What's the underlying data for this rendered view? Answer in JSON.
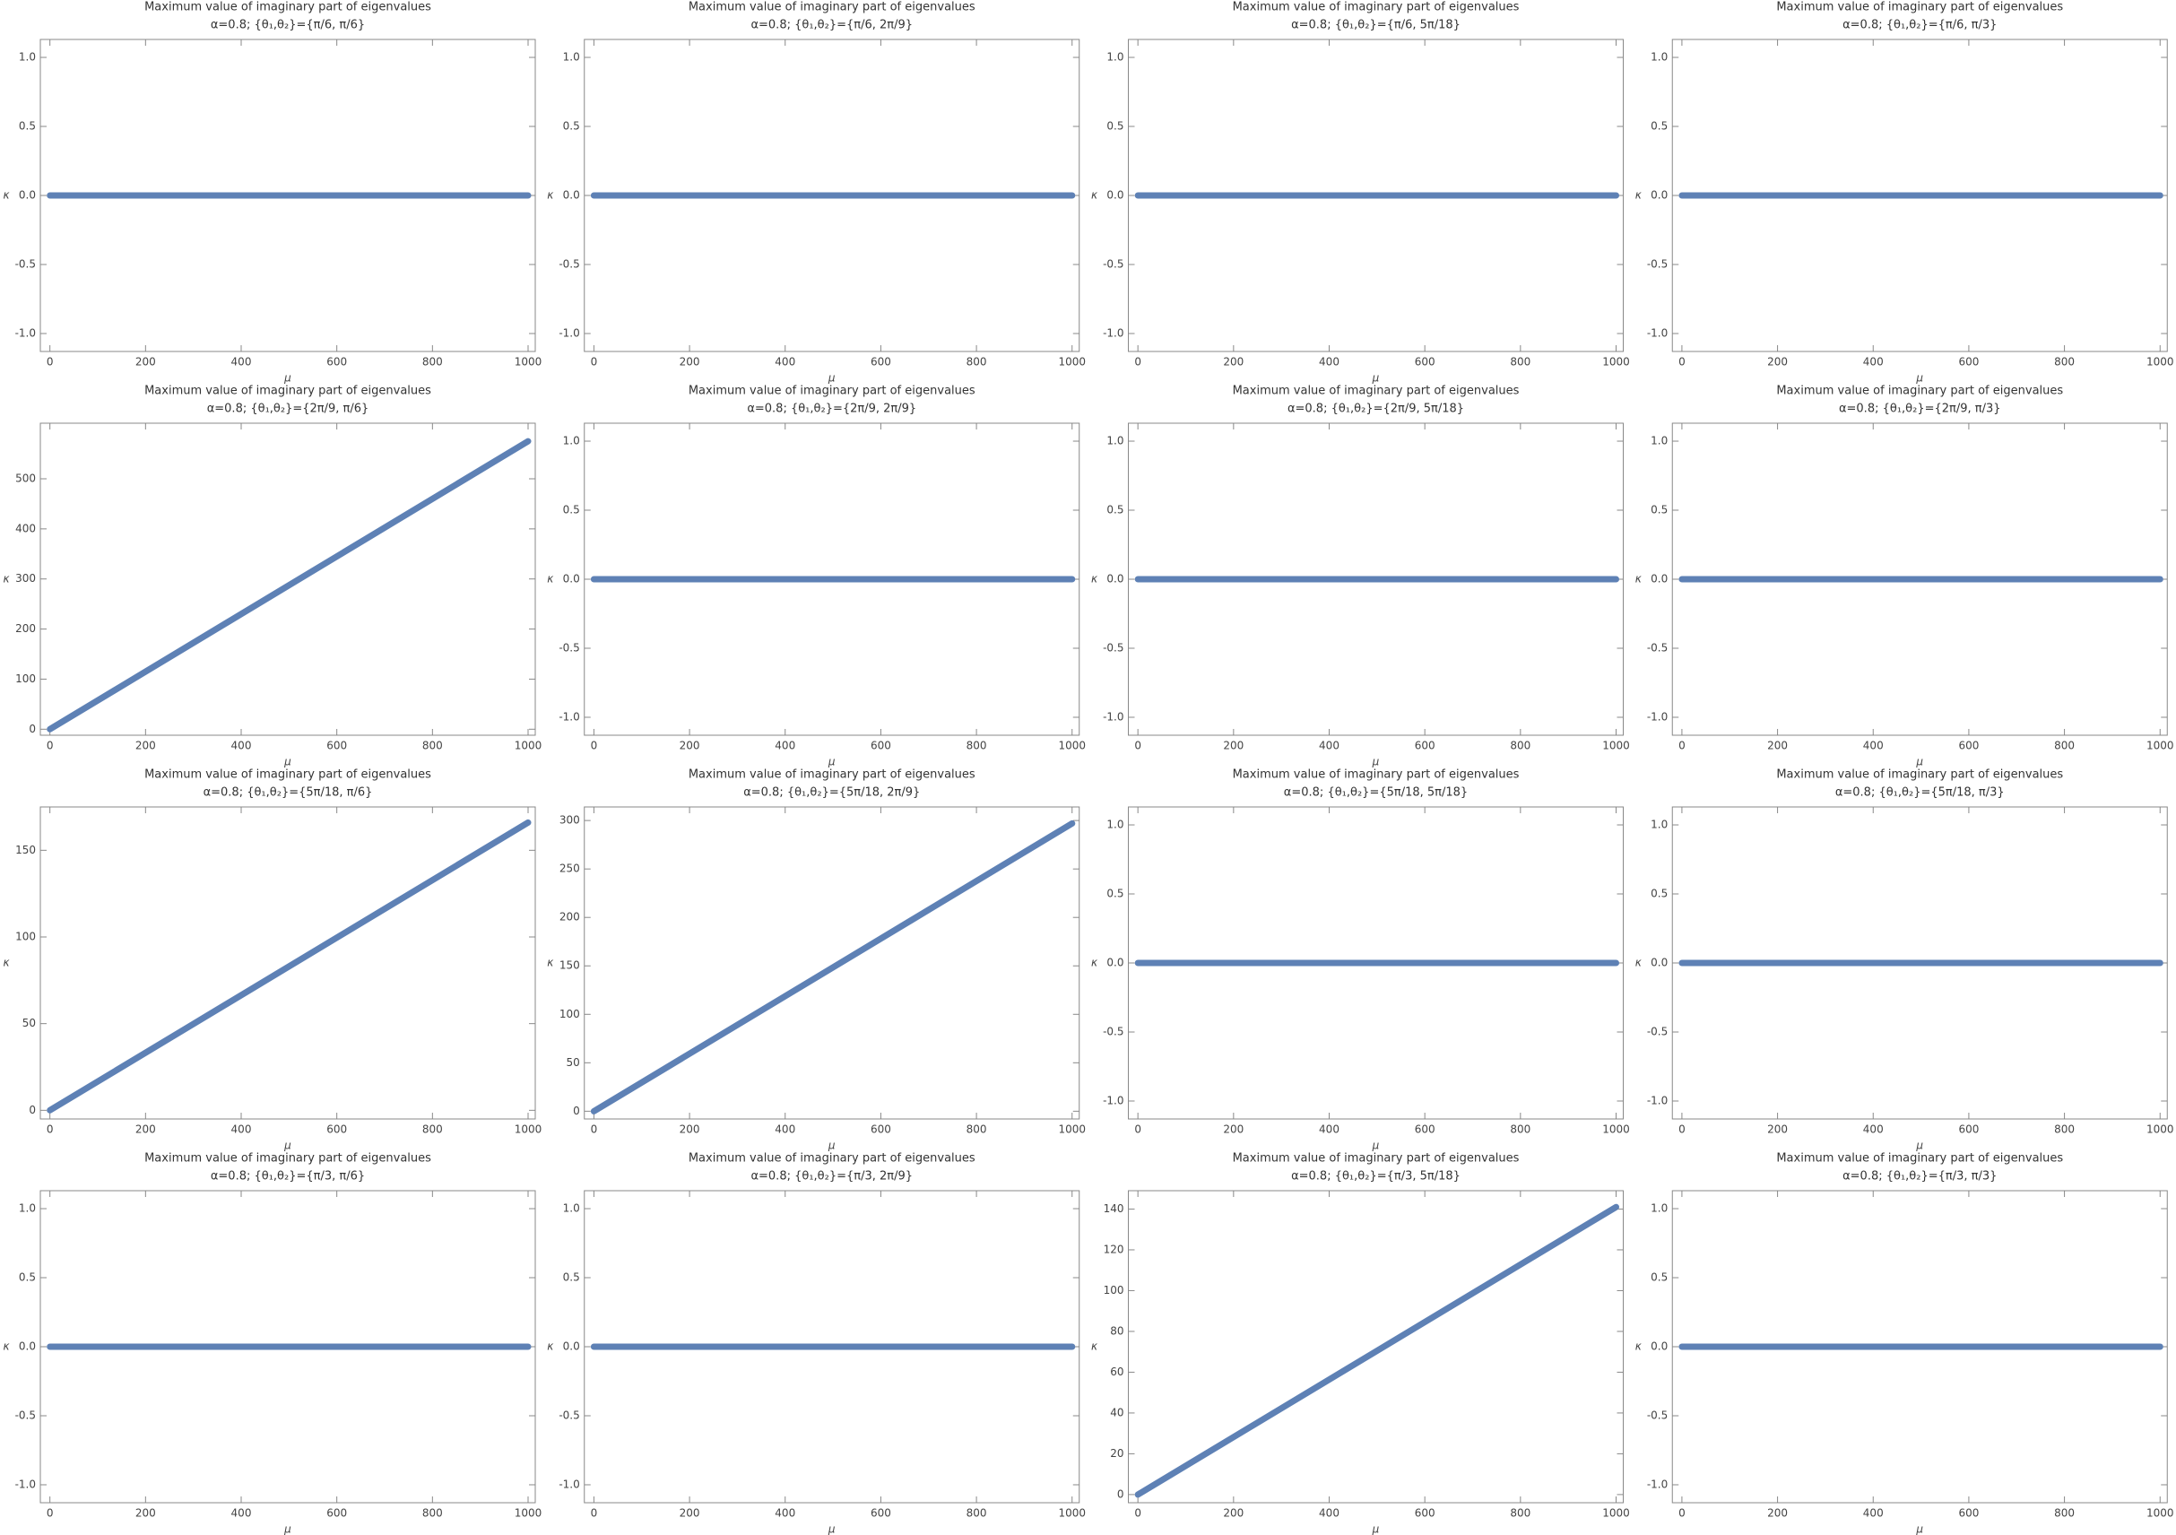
{
  "chart_data": [
    {
      "type": "line",
      "title": "Maximum value of imaginary part of eigenvalues",
      "subtitle": "α=0.8; {θ₁,θ₂}={π/6, π/6}",
      "xlabel": "μ",
      "ylabel": "κ",
      "x": [
        0,
        1000
      ],
      "values": [
        0,
        0
      ],
      "color": "#5e81b5",
      "xlim": [
        -20,
        1015
      ],
      "ylim": [
        -1.13,
        1.13
      ],
      "xticks": [
        0,
        200,
        400,
        600,
        800,
        1000
      ],
      "yticks": [
        {
          "value": -1,
          "label": "-1.0"
        },
        {
          "value": -0.5,
          "label": "-0.5"
        },
        {
          "value": 0,
          "label": "0.0"
        },
        {
          "value": 0.5,
          "label": "0.5"
        },
        {
          "value": 1,
          "label": "1.0"
        }
      ]
    },
    {
      "type": "line",
      "title": "Maximum value of imaginary part of eigenvalues",
      "subtitle": "α=0.8; {θ₁,θ₂}={π/6, 2π/9}",
      "xlabel": "μ",
      "ylabel": "κ",
      "x": [
        0,
        1000
      ],
      "values": [
        0,
        0
      ],
      "color": "#5e81b5",
      "xlim": [
        -20,
        1015
      ],
      "ylim": [
        -1.13,
        1.13
      ],
      "xticks": [
        0,
        200,
        400,
        600,
        800,
        1000
      ],
      "yticks": [
        {
          "value": -1,
          "label": "-1.0"
        },
        {
          "value": -0.5,
          "label": "-0.5"
        },
        {
          "value": 0,
          "label": "0.0"
        },
        {
          "value": 0.5,
          "label": "0.5"
        },
        {
          "value": 1,
          "label": "1.0"
        }
      ]
    },
    {
      "type": "line",
      "title": "Maximum value of imaginary part of eigenvalues",
      "subtitle": "α=0.8; {θ₁,θ₂}={π/6, 5π/18}",
      "xlabel": "μ",
      "ylabel": "κ",
      "x": [
        0,
        1000
      ],
      "values": [
        0,
        0
      ],
      "color": "#5e81b5",
      "xlim": [
        -20,
        1015
      ],
      "ylim": [
        -1.13,
        1.13
      ],
      "xticks": [
        0,
        200,
        400,
        600,
        800,
        1000
      ],
      "yticks": [
        {
          "value": -1,
          "label": "-1.0"
        },
        {
          "value": -0.5,
          "label": "-0.5"
        },
        {
          "value": 0,
          "label": "0.0"
        },
        {
          "value": 0.5,
          "label": "0.5"
        },
        {
          "value": 1,
          "label": "1.0"
        }
      ]
    },
    {
      "type": "line",
      "title": "Maximum value of imaginary part of eigenvalues",
      "subtitle": "α=0.8; {θ₁,θ₂}={π/6, π/3}",
      "xlabel": "μ",
      "ylabel": "κ",
      "x": [
        0,
        1000
      ],
      "values": [
        0,
        0
      ],
      "color": "#5e81b5",
      "xlim": [
        -20,
        1015
      ],
      "ylim": [
        -1.13,
        1.13
      ],
      "xticks": [
        0,
        200,
        400,
        600,
        800,
        1000
      ],
      "yticks": [
        {
          "value": -1,
          "label": "-1.0"
        },
        {
          "value": -0.5,
          "label": "-0.5"
        },
        {
          "value": 0,
          "label": "0.0"
        },
        {
          "value": 0.5,
          "label": "0.5"
        },
        {
          "value": 1,
          "label": "1.0"
        }
      ]
    },
    {
      "type": "line",
      "title": "Maximum value of imaginary part of eigenvalues",
      "subtitle": "α=0.8; {θ₁,θ₂}={2π/9, π/6}",
      "xlabel": "μ",
      "ylabel": "κ",
      "x": [
        0,
        1000
      ],
      "values": [
        0,
        575
      ],
      "color": "#5e81b5",
      "xlim": [
        -20,
        1015
      ],
      "ylim": [
        -12,
        611
      ],
      "xticks": [
        0,
        200,
        400,
        600,
        800,
        1000
      ],
      "yticks": [
        0,
        100,
        200,
        300,
        400,
        500
      ]
    },
    {
      "type": "line",
      "title": "Maximum value of imaginary part of eigenvalues",
      "subtitle": "α=0.8; {θ₁,θ₂}={2π/9, 2π/9}",
      "xlabel": "μ",
      "ylabel": "κ",
      "x": [
        0,
        1000
      ],
      "values": [
        0,
        0
      ],
      "color": "#5e81b5",
      "xlim": [
        -20,
        1015
      ],
      "ylim": [
        -1.13,
        1.13
      ],
      "xticks": [
        0,
        200,
        400,
        600,
        800,
        1000
      ],
      "yticks": [
        {
          "value": -1,
          "label": "-1.0"
        },
        {
          "value": -0.5,
          "label": "-0.5"
        },
        {
          "value": 0,
          "label": "0.0"
        },
        {
          "value": 0.5,
          "label": "0.5"
        },
        {
          "value": 1,
          "label": "1.0"
        }
      ]
    },
    {
      "type": "line",
      "title": "Maximum value of imaginary part of eigenvalues",
      "subtitle": "α=0.8; {θ₁,θ₂}={2π/9, 5π/18}",
      "xlabel": "μ",
      "ylabel": "κ",
      "x": [
        0,
        1000
      ],
      "values": [
        0,
        0
      ],
      "color": "#5e81b5",
      "xlim": [
        -20,
        1015
      ],
      "ylim": [
        -1.13,
        1.13
      ],
      "xticks": [
        0,
        200,
        400,
        600,
        800,
        1000
      ],
      "yticks": [
        {
          "value": -1,
          "label": "-1.0"
        },
        {
          "value": -0.5,
          "label": "-0.5"
        },
        {
          "value": 0,
          "label": "0.0"
        },
        {
          "value": 0.5,
          "label": "0.5"
        },
        {
          "value": 1,
          "label": "1.0"
        }
      ]
    },
    {
      "type": "line",
      "title": "Maximum value of imaginary part of eigenvalues",
      "subtitle": "α=0.8; {θ₁,θ₂}={2π/9, π/3}",
      "xlabel": "μ",
      "ylabel": "κ",
      "x": [
        0,
        1000
      ],
      "values": [
        0,
        0
      ],
      "color": "#5e81b5",
      "xlim": [
        -20,
        1015
      ],
      "ylim": [
        -1.13,
        1.13
      ],
      "xticks": [
        0,
        200,
        400,
        600,
        800,
        1000
      ],
      "yticks": [
        {
          "value": -1,
          "label": "-1.0"
        },
        {
          "value": -0.5,
          "label": "-0.5"
        },
        {
          "value": 0,
          "label": "0.0"
        },
        {
          "value": 0.5,
          "label": "0.5"
        },
        {
          "value": 1,
          "label": "1.0"
        }
      ]
    },
    {
      "type": "line",
      "title": "Maximum value of imaginary part of eigenvalues",
      "subtitle": "α=0.8; {θ₁,θ₂}={5π/18, π/6}",
      "xlabel": "μ",
      "ylabel": "κ",
      "x": [
        0,
        1000
      ],
      "values": [
        0,
        166
      ],
      "color": "#5e81b5",
      "xlim": [
        -20,
        1015
      ],
      "ylim": [
        -5,
        175
      ],
      "xticks": [
        0,
        200,
        400,
        600,
        800,
        1000
      ],
      "yticks": [
        0,
        50,
        100,
        150
      ]
    },
    {
      "type": "line",
      "title": "Maximum value of imaginary part of eigenvalues",
      "subtitle": "α=0.8; {θ₁,θ₂}={5π/18, 2π/9}",
      "xlabel": "μ",
      "ylabel": "κ",
      "x": [
        0,
        1000
      ],
      "values": [
        0,
        297
      ],
      "color": "#5e81b5",
      "xlim": [
        -20,
        1015
      ],
      "ylim": [
        -8,
        314
      ],
      "xticks": [
        0,
        200,
        400,
        600,
        800,
        1000
      ],
      "yticks": [
        0,
        50,
        100,
        150,
        200,
        250,
        300
      ]
    },
    {
      "type": "line",
      "title": "Maximum value of imaginary part of eigenvalues",
      "subtitle": "α=0.8; {θ₁,θ₂}={5π/18, 5π/18}",
      "xlabel": "μ",
      "ylabel": "κ",
      "x": [
        0,
        1000
      ],
      "values": [
        0,
        0
      ],
      "color": "#5e81b5",
      "xlim": [
        -20,
        1015
      ],
      "ylim": [
        -1.13,
        1.13
      ],
      "xticks": [
        0,
        200,
        400,
        600,
        800,
        1000
      ],
      "yticks": [
        {
          "value": -1,
          "label": "-1.0"
        },
        {
          "value": -0.5,
          "label": "-0.5"
        },
        {
          "value": 0,
          "label": "0.0"
        },
        {
          "value": 0.5,
          "label": "0.5"
        },
        {
          "value": 1,
          "label": "1.0"
        }
      ]
    },
    {
      "type": "line",
      "title": "Maximum value of imaginary part of eigenvalues",
      "subtitle": "α=0.8; {θ₁,θ₂}={5π/18, π/3}",
      "xlabel": "μ",
      "ylabel": "κ",
      "x": [
        0,
        1000
      ],
      "values": [
        0,
        0
      ],
      "color": "#5e81b5",
      "xlim": [
        -20,
        1015
      ],
      "ylim": [
        -1.13,
        1.13
      ],
      "xticks": [
        0,
        200,
        400,
        600,
        800,
        1000
      ],
      "yticks": [
        {
          "value": -1,
          "label": "-1.0"
        },
        {
          "value": -0.5,
          "label": "-0.5"
        },
        {
          "value": 0,
          "label": "0.0"
        },
        {
          "value": 0.5,
          "label": "0.5"
        },
        {
          "value": 1,
          "label": "1.0"
        }
      ]
    },
    {
      "type": "line",
      "title": "Maximum value of imaginary part of eigenvalues",
      "subtitle": "α=0.8; {θ₁,θ₂}={π/3, π/6}",
      "xlabel": "μ",
      "ylabel": "κ",
      "x": [
        0,
        1000
      ],
      "values": [
        0,
        0
      ],
      "color": "#5e81b5",
      "xlim": [
        -20,
        1015
      ],
      "ylim": [
        -1.13,
        1.13
      ],
      "xticks": [
        0,
        200,
        400,
        600,
        800,
        1000
      ],
      "yticks": [
        {
          "value": -1,
          "label": "-1.0"
        },
        {
          "value": -0.5,
          "label": "-0.5"
        },
        {
          "value": 0,
          "label": "0.0"
        },
        {
          "value": 0.5,
          "label": "0.5"
        },
        {
          "value": 1,
          "label": "1.0"
        }
      ]
    },
    {
      "type": "line",
      "title": "Maximum value of imaginary part of eigenvalues",
      "subtitle": "α=0.8; {θ₁,θ₂}={π/3, 2π/9}",
      "xlabel": "μ",
      "ylabel": "κ",
      "x": [
        0,
        1000
      ],
      "values": [
        0,
        0
      ],
      "color": "#5e81b5",
      "xlim": [
        -20,
        1015
      ],
      "ylim": [
        -1.13,
        1.13
      ],
      "xticks": [
        0,
        200,
        400,
        600,
        800,
        1000
      ],
      "yticks": [
        {
          "value": -1,
          "label": "-1.0"
        },
        {
          "value": -0.5,
          "label": "-0.5"
        },
        {
          "value": 0,
          "label": "0.0"
        },
        {
          "value": 0.5,
          "label": "0.5"
        },
        {
          "value": 1,
          "label": "1.0"
        }
      ]
    },
    {
      "type": "line",
      "title": "Maximum value of imaginary part of eigenvalues",
      "subtitle": "α=0.8; {θ₁,θ₂}={π/3, 5π/18}",
      "xlabel": "μ",
      "ylabel": "κ",
      "x": [
        0,
        1000
      ],
      "values": [
        0,
        141
      ],
      "color": "#5e81b5",
      "xlim": [
        -20,
        1015
      ],
      "ylim": [
        -4,
        149
      ],
      "xticks": [
        0,
        200,
        400,
        600,
        800,
        1000
      ],
      "yticks": [
        0,
        20,
        40,
        60,
        80,
        100,
        120,
        140
      ]
    },
    {
      "type": "line",
      "title": "Maximum value of imaginary part of eigenvalues",
      "subtitle": "α=0.8; {θ₁,θ₂}={π/3, π/3}",
      "xlabel": "μ",
      "ylabel": "κ",
      "x": [
        0,
        1000
      ],
      "values": [
        0,
        0
      ],
      "color": "#5e81b5",
      "xlim": [
        -20,
        1015
      ],
      "ylim": [
        -1.13,
        1.13
      ],
      "xticks": [
        0,
        200,
        400,
        600,
        800,
        1000
      ],
      "yticks": [
        {
          "value": -1,
          "label": "-1.0"
        },
        {
          "value": -0.5,
          "label": "-0.5"
        },
        {
          "value": 0,
          "label": "0.0"
        },
        {
          "value": 0.5,
          "label": "0.5"
        },
        {
          "value": 1,
          "label": "1.0"
        }
      ]
    }
  ]
}
